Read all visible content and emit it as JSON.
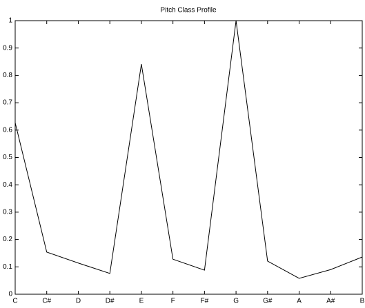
{
  "chart_data": {
    "type": "line",
    "title": "Pitch Class Profile",
    "categories": [
      "C",
      "C#",
      "D",
      "D#",
      "E",
      "F",
      "F#",
      "G",
      "G#",
      "A",
      "A#",
      "B"
    ],
    "values": [
      0.627,
      0.154,
      0.114,
      0.076,
      0.841,
      0.128,
      0.088,
      1.0,
      0.121,
      0.058,
      0.09,
      0.136
    ],
    "color": "#000000",
    "ylim": [
      0,
      1
    ],
    "yticks": [
      0,
      0.1,
      0.2,
      0.3,
      0.4,
      0.5,
      0.6,
      0.7,
      0.8,
      0.9,
      1
    ],
    "grid": false
  }
}
